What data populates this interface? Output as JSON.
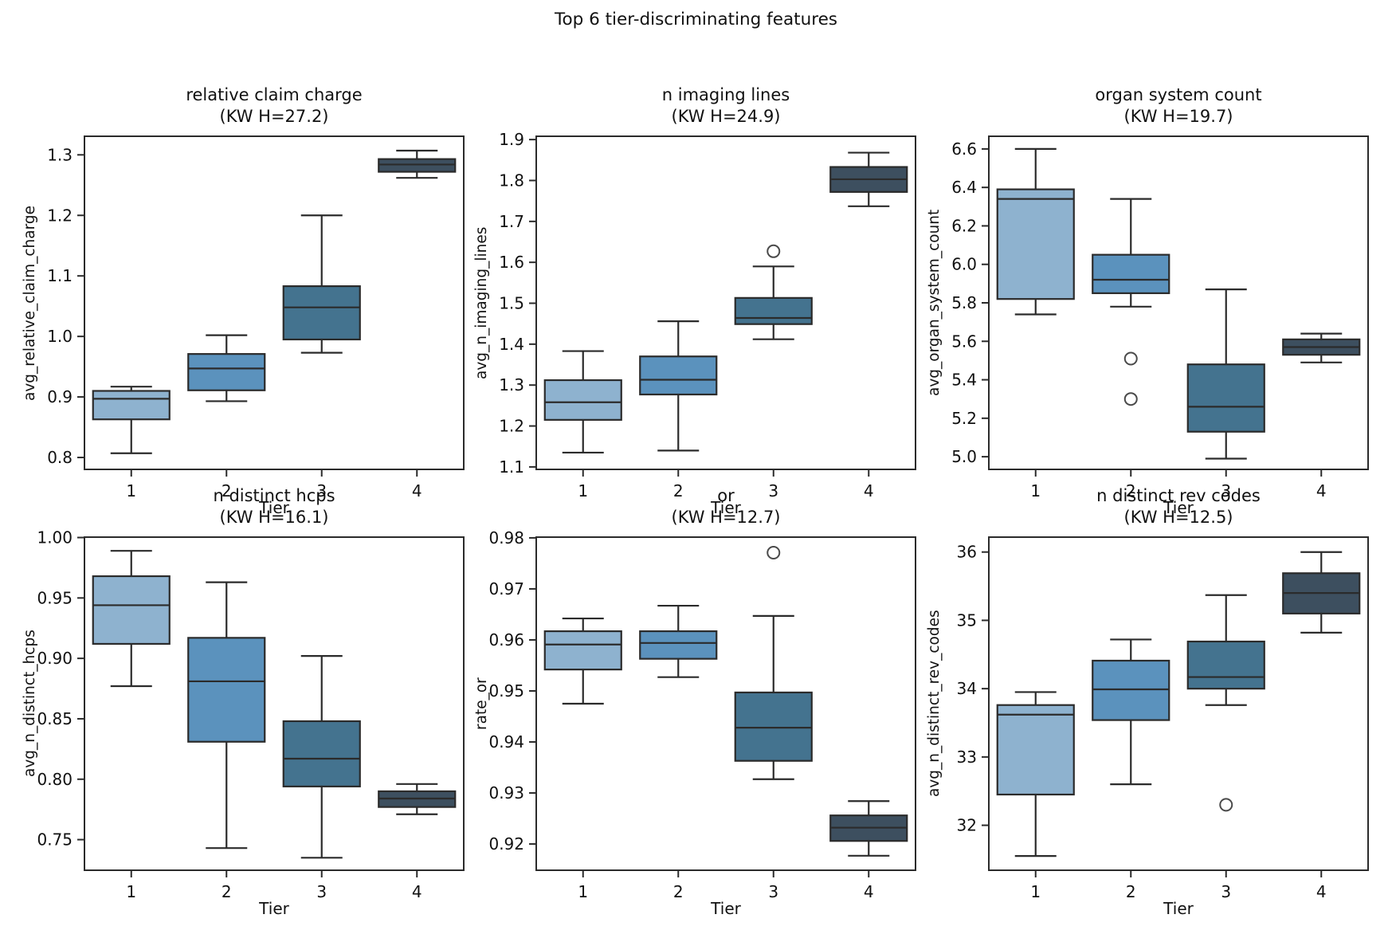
{
  "figure": {
    "title": "Top 6 tier-discriminating features",
    "palette": [
      "#8eb2cf",
      "#5b92bd",
      "#44738f",
      "#3d4f5f"
    ],
    "edge_color": "#2b2b2b",
    "outlier_color": "#4a4a4a",
    "tier_axis_label": "Tier"
  },
  "chart_data": [
    {
      "type": "box",
      "title": "relative claim charge",
      "subtitle": "(KW H=27.2)",
      "ylabel": "avg_relative_claim_charge",
      "xlabel": "Tier",
      "categories": [
        "1",
        "2",
        "3",
        "4"
      ],
      "ylim": [
        0.779,
        1.332
      ],
      "yticks": [
        0.8,
        0.9,
        1.0,
        1.1,
        1.2,
        1.3
      ],
      "ytick_labels": [
        "0.8",
        "0.9",
        "1.0",
        "1.1",
        "1.2",
        "1.3"
      ],
      "boxes": [
        {
          "tier": "1",
          "whisker_low": 0.807,
          "q1": 0.863,
          "median": 0.897,
          "q3": 0.91,
          "whisker_high": 0.917,
          "outliers": []
        },
        {
          "tier": "2",
          "whisker_low": 0.893,
          "q1": 0.911,
          "median": 0.947,
          "q3": 0.971,
          "whisker_high": 1.002,
          "outliers": []
        },
        {
          "tier": "3",
          "whisker_low": 0.973,
          "q1": 0.995,
          "median": 1.048,
          "q3": 1.083,
          "whisker_high": 1.2,
          "outliers": []
        },
        {
          "tier": "4",
          "whisker_low": 1.262,
          "q1": 1.272,
          "median": 1.284,
          "q3": 1.293,
          "whisker_high": 1.307,
          "outliers": []
        }
      ]
    },
    {
      "type": "box",
      "title": "n imaging lines",
      "subtitle": "(KW H=24.9)",
      "ylabel": "avg_n_imaging_lines",
      "xlabel": "Tier",
      "categories": [
        "1",
        "2",
        "3",
        "4"
      ],
      "ylim": [
        1.092,
        1.91
      ],
      "yticks": [
        1.1,
        1.2,
        1.3,
        1.4,
        1.5,
        1.6,
        1.7,
        1.8,
        1.9
      ],
      "ytick_labels": [
        "1.1",
        "1.2",
        "1.3",
        "1.4",
        "1.5",
        "1.6",
        "1.7",
        "1.8",
        "1.9"
      ],
      "boxes": [
        {
          "tier": "1",
          "whisker_low": 1.135,
          "q1": 1.215,
          "median": 1.258,
          "q3": 1.312,
          "whisker_high": 1.383,
          "outliers": []
        },
        {
          "tier": "2",
          "whisker_low": 1.14,
          "q1": 1.277,
          "median": 1.313,
          "q3": 1.37,
          "whisker_high": 1.456,
          "outliers": []
        },
        {
          "tier": "3",
          "whisker_low": 1.412,
          "q1": 1.449,
          "median": 1.464,
          "q3": 1.513,
          "whisker_high": 1.59,
          "outliers": [
            1.627
          ]
        },
        {
          "tier": "4",
          "whisker_low": 1.737,
          "q1": 1.772,
          "median": 1.803,
          "q3": 1.833,
          "whisker_high": 1.868,
          "outliers": []
        }
      ]
    },
    {
      "type": "box",
      "title": "organ system count",
      "subtitle": "(KW H=19.7)",
      "ylabel": "avg_organ_system_count",
      "xlabel": "Tier",
      "categories": [
        "1",
        "2",
        "3",
        "4"
      ],
      "ylim": [
        4.93,
        6.67
      ],
      "yticks": [
        5.0,
        5.2,
        5.4,
        5.6,
        5.8,
        6.0,
        6.2,
        6.4,
        6.6
      ],
      "ytick_labels": [
        "5.0",
        "5.2",
        "5.4",
        "5.6",
        "5.8",
        "6.0",
        "6.2",
        "6.4",
        "6.6"
      ],
      "boxes": [
        {
          "tier": "1",
          "whisker_low": 5.74,
          "q1": 5.82,
          "median": 6.34,
          "q3": 6.39,
          "whisker_high": 6.6,
          "outliers": []
        },
        {
          "tier": "2",
          "whisker_low": 5.78,
          "q1": 5.85,
          "median": 5.92,
          "q3": 6.05,
          "whisker_high": 6.34,
          "outliers": [
            5.51,
            5.3
          ]
        },
        {
          "tier": "3",
          "whisker_low": 4.99,
          "q1": 5.13,
          "median": 5.26,
          "q3": 5.48,
          "whisker_high": 5.87,
          "outliers": []
        },
        {
          "tier": "4",
          "whisker_low": 5.49,
          "q1": 5.53,
          "median": 5.57,
          "q3": 5.61,
          "whisker_high": 5.64,
          "outliers": []
        }
      ]
    },
    {
      "type": "box",
      "title": "n distinct hcps",
      "subtitle": "(KW H=16.1)",
      "ylabel": "avg_n_distinct_hcps",
      "xlabel": "Tier",
      "categories": [
        "1",
        "2",
        "3",
        "4"
      ],
      "ylim": [
        0.724,
        1.001
      ],
      "yticks": [
        0.75,
        0.8,
        0.85,
        0.9,
        0.95,
        1.0
      ],
      "ytick_labels": [
        "0.75",
        "0.80",
        "0.85",
        "0.90",
        "0.95",
        "1.00"
      ],
      "boxes": [
        {
          "tier": "1",
          "whisker_low": 0.877,
          "q1": 0.912,
          "median": 0.944,
          "q3": 0.968,
          "whisker_high": 0.989,
          "outliers": []
        },
        {
          "tier": "2",
          "whisker_low": 0.743,
          "q1": 0.831,
          "median": 0.881,
          "q3": 0.917,
          "whisker_high": 0.963,
          "outliers": []
        },
        {
          "tier": "3",
          "whisker_low": 0.735,
          "q1": 0.794,
          "median": 0.817,
          "q3": 0.848,
          "whisker_high": 0.902,
          "outliers": []
        },
        {
          "tier": "4",
          "whisker_low": 0.771,
          "q1": 0.777,
          "median": 0.784,
          "q3": 0.79,
          "whisker_high": 0.796,
          "outliers": []
        }
      ]
    },
    {
      "type": "box",
      "title": "or",
      "subtitle": "(KW H=12.7)",
      "ylabel": "rate_or",
      "xlabel": "Tier",
      "categories": [
        "1",
        "2",
        "3",
        "4"
      ],
      "ylim": [
        0.9147,
        0.9803
      ],
      "yticks": [
        0.92,
        0.93,
        0.94,
        0.95,
        0.96,
        0.97,
        0.98
      ],
      "ytick_labels": [
        "0.92",
        "0.93",
        "0.94",
        "0.95",
        "0.96",
        "0.97",
        "0.98"
      ],
      "boxes": [
        {
          "tier": "1",
          "whisker_low": 0.9475,
          "q1": 0.9542,
          "median": 0.9591,
          "q3": 0.9617,
          "whisker_high": 0.9642,
          "outliers": []
        },
        {
          "tier": "2",
          "whisker_low": 0.9527,
          "q1": 0.9563,
          "median": 0.9594,
          "q3": 0.9617,
          "whisker_high": 0.9667,
          "outliers": []
        },
        {
          "tier": "3",
          "whisker_low": 0.9327,
          "q1": 0.9363,
          "median": 0.9428,
          "q3": 0.9497,
          "whisker_high": 0.9647,
          "outliers": [
            0.9771
          ]
        },
        {
          "tier": "4",
          "whisker_low": 0.9177,
          "q1": 0.9206,
          "median": 0.9232,
          "q3": 0.9256,
          "whisker_high": 0.9284,
          "outliers": []
        }
      ]
    },
    {
      "type": "box",
      "title": "n distinct rev codes",
      "subtitle": "(KW H=12.5)",
      "ylabel": "avg_n_distinct_rev_codes",
      "xlabel": "Tier",
      "categories": [
        "1",
        "2",
        "3",
        "4"
      ],
      "ylim": [
        31.33,
        36.23
      ],
      "yticks": [
        32,
        33,
        34,
        35,
        36
      ],
      "ytick_labels": [
        "32",
        "33",
        "34",
        "35",
        "36"
      ],
      "boxes": [
        {
          "tier": "1",
          "whisker_low": 31.55,
          "q1": 32.45,
          "median": 33.62,
          "q3": 33.76,
          "whisker_high": 33.95,
          "outliers": []
        },
        {
          "tier": "2",
          "whisker_low": 32.6,
          "q1": 33.54,
          "median": 33.99,
          "q3": 34.41,
          "whisker_high": 34.72,
          "outliers": []
        },
        {
          "tier": "3",
          "whisker_low": 33.76,
          "q1": 34.0,
          "median": 34.17,
          "q3": 34.69,
          "whisker_high": 35.37,
          "outliers": [
            32.3
          ]
        },
        {
          "tier": "4",
          "whisker_low": 34.82,
          "q1": 35.1,
          "median": 35.4,
          "q3": 35.69,
          "whisker_high": 36.0,
          "outliers": []
        }
      ]
    }
  ]
}
